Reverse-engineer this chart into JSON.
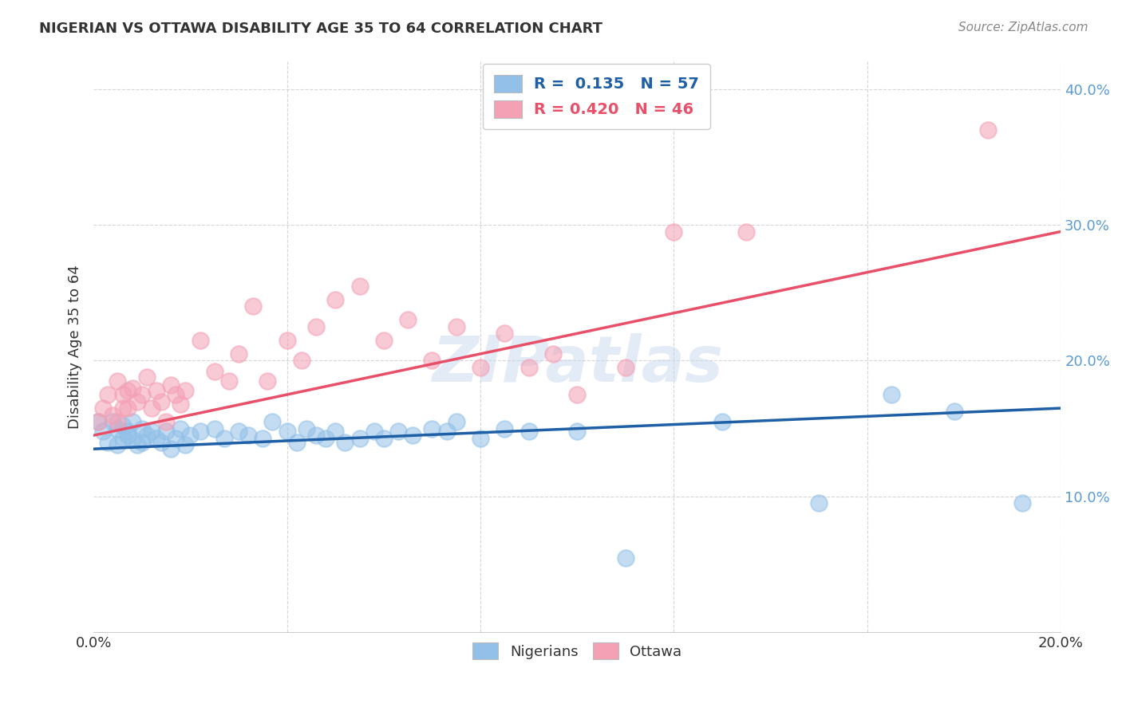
{
  "title": "NIGERIAN VS OTTAWA DISABILITY AGE 35 TO 64 CORRELATION CHART",
  "source": "Source: ZipAtlas.com",
  "ylabel": "Disability Age 35 to 64",
  "xlim": [
    0.0,
    0.2
  ],
  "ylim": [
    0.0,
    0.42
  ],
  "x_ticks": [
    0.0,
    0.04,
    0.08,
    0.12,
    0.16,
    0.2
  ],
  "x_tick_labels": [
    "0.0%",
    "",
    "",
    "",
    "",
    "20.0%"
  ],
  "y_ticks": [
    0.1,
    0.2,
    0.3,
    0.4
  ],
  "y_tick_labels": [
    "10.0%",
    "20.0%",
    "30.0%",
    "40.0%"
  ],
  "blue_color": "#92C0E8",
  "pink_color": "#F4A0B5",
  "blue_line_color": "#1F5FA6",
  "pink_line_color": "#E8506A",
  "R_blue": 0.135,
  "N_blue": 57,
  "R_pink": 0.42,
  "N_pink": 46,
  "watermark": "ZIPatlas",
  "blue_line_y0": 0.135,
  "blue_line_y1": 0.165,
  "pink_line_y0": 0.145,
  "pink_line_y1": 0.295,
  "nigerian_x": [
    0.001,
    0.002,
    0.003,
    0.004,
    0.005,
    0.005,
    0.006,
    0.006,
    0.007,
    0.007,
    0.008,
    0.008,
    0.009,
    0.01,
    0.01,
    0.011,
    0.012,
    0.013,
    0.014,
    0.015,
    0.016,
    0.017,
    0.018,
    0.019,
    0.02,
    0.022,
    0.025,
    0.027,
    0.03,
    0.032,
    0.035,
    0.037,
    0.04,
    0.042,
    0.044,
    0.046,
    0.048,
    0.05,
    0.052,
    0.055,
    0.058,
    0.06,
    0.063,
    0.066,
    0.07,
    0.073,
    0.075,
    0.08,
    0.085,
    0.09,
    0.1,
    0.11,
    0.13,
    0.15,
    0.165,
    0.178,
    0.192
  ],
  "nigerian_y": [
    0.155,
    0.148,
    0.14,
    0.155,
    0.138,
    0.15,
    0.143,
    0.152,
    0.145,
    0.148,
    0.142,
    0.155,
    0.138,
    0.14,
    0.15,
    0.145,
    0.148,
    0.143,
    0.14,
    0.148,
    0.135,
    0.143,
    0.15,
    0.138,
    0.145,
    0.148,
    0.15,
    0.143,
    0.148,
    0.145,
    0.143,
    0.155,
    0.148,
    0.14,
    0.15,
    0.145,
    0.143,
    0.148,
    0.14,
    0.143,
    0.148,
    0.143,
    0.148,
    0.145,
    0.15,
    0.148,
    0.155,
    0.143,
    0.15,
    0.148,
    0.148,
    0.055,
    0.155,
    0.095,
    0.175,
    0.163,
    0.095
  ],
  "ottawa_x": [
    0.001,
    0.002,
    0.003,
    0.004,
    0.005,
    0.005,
    0.006,
    0.006,
    0.007,
    0.007,
    0.008,
    0.009,
    0.01,
    0.011,
    0.012,
    0.013,
    0.014,
    0.015,
    0.016,
    0.017,
    0.018,
    0.019,
    0.022,
    0.025,
    0.028,
    0.03,
    0.033,
    0.036,
    0.04,
    0.043,
    0.046,
    0.05,
    0.055,
    0.06,
    0.065,
    0.07,
    0.075,
    0.08,
    0.085,
    0.09,
    0.095,
    0.1,
    0.11,
    0.12,
    0.135,
    0.185
  ],
  "ottawa_y": [
    0.155,
    0.165,
    0.175,
    0.16,
    0.185,
    0.155,
    0.175,
    0.165,
    0.178,
    0.165,
    0.18,
    0.17,
    0.175,
    0.188,
    0.165,
    0.178,
    0.17,
    0.155,
    0.182,
    0.175,
    0.168,
    0.178,
    0.215,
    0.192,
    0.185,
    0.205,
    0.24,
    0.185,
    0.215,
    0.2,
    0.225,
    0.245,
    0.255,
    0.215,
    0.23,
    0.2,
    0.225,
    0.195,
    0.22,
    0.195,
    0.205,
    0.175,
    0.195,
    0.295,
    0.295,
    0.37
  ]
}
